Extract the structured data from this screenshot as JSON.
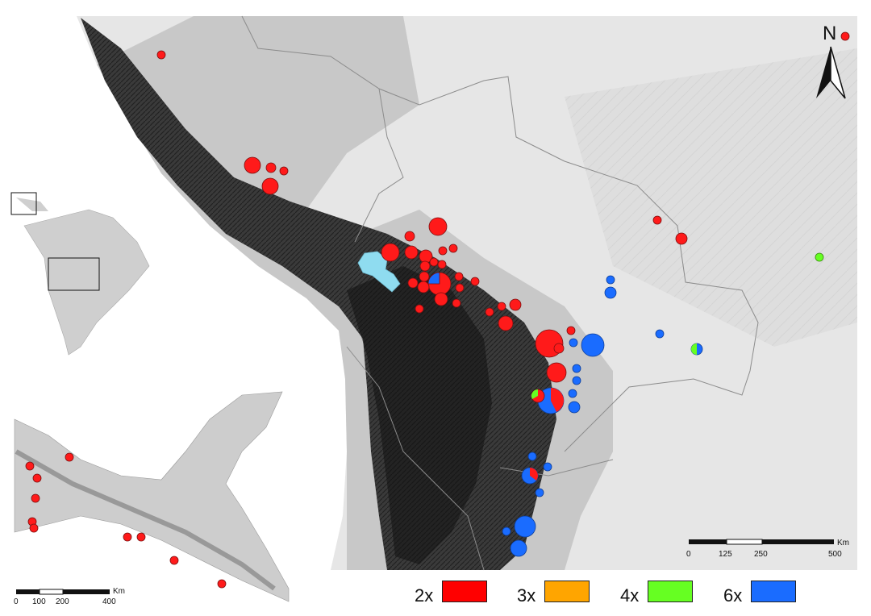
{
  "legend": {
    "items": [
      {
        "label": "2x",
        "color": "#ff0000"
      },
      {
        "label": "3x",
        "color": "#ffa500"
      },
      {
        "label": "4x",
        "color": "#66ff22"
      },
      {
        "label": "6x",
        "color": "#1a6cff"
      }
    ]
  },
  "north_arrow": {
    "label": "N",
    "icon": "north-arrow-icon"
  },
  "main_scale": {
    "unit": "Km",
    "ticks": [
      "0",
      "125",
      "250",
      "500"
    ]
  },
  "inset_scale": {
    "unit": "Km",
    "ticks": [
      "0",
      "100",
      "200",
      "400"
    ]
  },
  "colors": {
    "red": "#ff1a1a",
    "green": "#66ff22",
    "blue": "#1a6cff",
    "lake": "#8fdcf0",
    "land": "#e3e3e3",
    "relief_dark": "#2a2a2a"
  }
}
